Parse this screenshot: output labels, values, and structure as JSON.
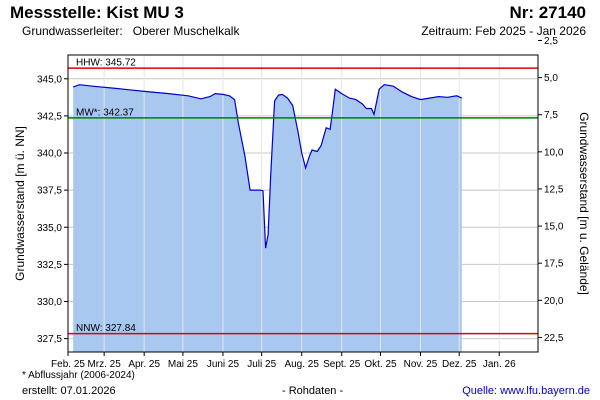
{
  "header": {
    "station": "Messstelle: Kist MU 3",
    "number": "Nr: 27140",
    "aquifer_label": "Grundwasserleiter:",
    "aquifer_value": "Oberer Muschelkalk",
    "period": "Zeitraum: Feb 2025 - Jan 2026"
  },
  "footer": {
    "footnote": "* Abflussjahr (2006-2024)",
    "created": "erstellt:  07.01.2026",
    "raw": "- Rohdaten -",
    "source": "Quelle: www.lfu.bayern.de"
  },
  "chart_data": {
    "type": "area",
    "ylabel": "Grundwasserstand [m ü. NN]",
    "y2label": "Grundwasserstand [m u. Gelände]",
    "ylim": [
      326.6,
      346.6
    ],
    "yticks": [
      "327,5",
      "330,0",
      "332,5",
      "335,0",
      "337,5",
      "340,0",
      "342,5",
      "345,0"
    ],
    "y2ticks": [
      "2,5",
      "5,0",
      "7,5",
      "10,0",
      "12,5",
      "15,0",
      "17,5",
      "20,0",
      "22,5"
    ],
    "y2_offset": 350.08,
    "xlim": [
      "2025-02-01",
      "2026-01-31"
    ],
    "xticks": [
      {
        "date": "2025-02-01",
        "label": "Feb. 25"
      },
      {
        "date": "2025-03-01",
        "label": "Mrz. 25"
      },
      {
        "date": "2025-04-01",
        "label": "Apr. 25"
      },
      {
        "date": "2025-05-01",
        "label": "Mai 25"
      },
      {
        "date": "2025-06-01",
        "label": "Juni 25"
      },
      {
        "date": "2025-07-01",
        "label": "Juli 25"
      },
      {
        "date": "2025-08-01",
        "label": "Aug. 25"
      },
      {
        "date": "2025-09-01",
        "label": "Sept. 25"
      },
      {
        "date": "2025-10-01",
        "label": "Okt. 25"
      },
      {
        "date": "2025-11-01",
        "label": "Nov. 25"
      },
      {
        "date": "2025-12-01",
        "label": "Dez. 25"
      },
      {
        "date": "2026-01-01",
        "label": "Jan. 26"
      }
    ],
    "grid": true,
    "reference_lines": [
      {
        "label": "HHW: 345.72",
        "value": 345.72,
        "color": "#e00000"
      },
      {
        "label": "MW*: 342.37",
        "value": 342.37,
        "color": "#008000"
      },
      {
        "label": "NNW: 327.84",
        "value": 327.84,
        "color": "#e00000"
      }
    ],
    "series": [
      {
        "fill": "#a9c8f0",
        "color": "#0000cc",
        "points": [
          [
            "2025-02-05",
            344.45
          ],
          [
            "2025-02-10",
            344.6
          ],
          [
            "2025-02-20",
            344.5
          ],
          [
            "2025-03-10",
            344.35
          ],
          [
            "2025-04-01",
            344.15
          ],
          [
            "2025-04-20",
            344.0
          ],
          [
            "2025-05-05",
            343.85
          ],
          [
            "2025-05-15",
            343.65
          ],
          [
            "2025-05-22",
            343.8
          ],
          [
            "2025-05-26",
            344.0
          ],
          [
            "2025-06-01",
            343.95
          ],
          [
            "2025-06-06",
            343.85
          ],
          [
            "2025-06-10",
            343.6
          ],
          [
            "2025-06-13",
            342.0
          ],
          [
            "2025-06-18",
            339.8
          ],
          [
            "2025-06-22",
            337.5
          ],
          [
            "2025-06-30",
            337.5
          ],
          [
            "2025-07-02",
            337.45
          ],
          [
            "2025-07-04",
            333.6
          ],
          [
            "2025-07-06",
            334.5
          ],
          [
            "2025-07-08",
            338.5
          ],
          [
            "2025-07-11",
            343.5
          ],
          [
            "2025-07-14",
            343.9
          ],
          [
            "2025-07-17",
            343.95
          ],
          [
            "2025-07-21",
            343.7
          ],
          [
            "2025-07-25",
            343.2
          ],
          [
            "2025-07-29",
            341.5
          ],
          [
            "2025-08-01",
            340.0
          ],
          [
            "2025-08-04",
            339.0
          ],
          [
            "2025-08-07",
            339.8
          ],
          [
            "2025-08-09",
            340.2
          ],
          [
            "2025-08-13",
            340.1
          ],
          [
            "2025-08-16",
            340.5
          ],
          [
            "2025-08-20",
            341.7
          ],
          [
            "2025-08-23",
            341.6
          ],
          [
            "2025-08-25",
            342.9
          ],
          [
            "2025-08-27",
            344.3
          ],
          [
            "2025-09-01",
            344.0
          ],
          [
            "2025-09-07",
            343.7
          ],
          [
            "2025-09-12",
            343.6
          ],
          [
            "2025-09-17",
            343.3
          ],
          [
            "2025-09-20",
            343.0
          ],
          [
            "2025-09-24",
            343.0
          ],
          [
            "2025-09-26",
            342.6
          ],
          [
            "2025-09-30",
            344.3
          ],
          [
            "2025-10-04",
            344.6
          ],
          [
            "2025-10-11",
            344.5
          ],
          [
            "2025-10-18",
            344.1
          ],
          [
            "2025-10-25",
            343.8
          ],
          [
            "2025-11-01",
            343.6
          ],
          [
            "2025-11-08",
            343.7
          ],
          [
            "2025-11-15",
            343.8
          ],
          [
            "2025-11-22",
            343.75
          ],
          [
            "2025-11-29",
            343.85
          ],
          [
            "2025-12-03",
            343.7
          ]
        ]
      }
    ]
  }
}
